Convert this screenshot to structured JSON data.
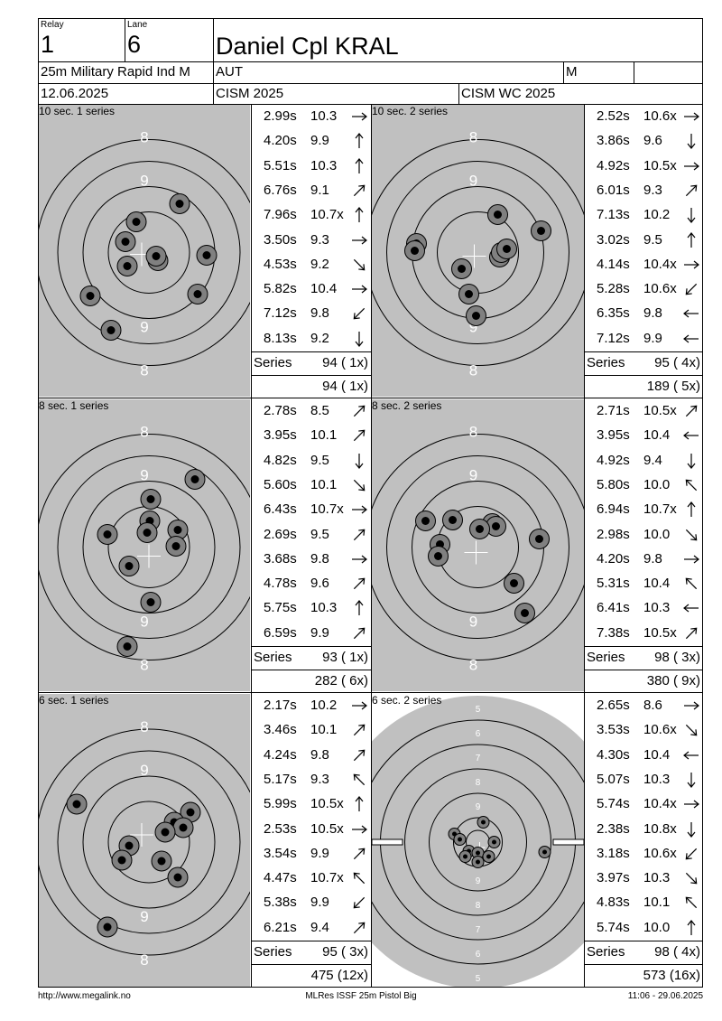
{
  "header": {
    "relay_label": "Relay",
    "relay_value": "1",
    "lane_label": "Lane",
    "lane_value": "6",
    "shooter_name": "Daniel Cpl KRAL",
    "event": "25m Military Rapid Ind M",
    "nation": "AUT",
    "gender": "M",
    "date": "12.06.2025",
    "competition": "CISM 2025",
    "championship": "CISM WC 2025"
  },
  "panels": [
    {
      "title": "10 sec. 1 series",
      "ring_labels": [
        "8",
        "9",
        "9",
        "8"
      ],
      "shots": [
        {
          "time": "2.99s",
          "value": "10.3",
          "dir": "right"
        },
        {
          "time": "4.20s",
          "value": "9.9",
          "dir": "up"
        },
        {
          "time": "5.51s",
          "value": "10.3",
          "dir": "up"
        },
        {
          "time": "6.76s",
          "value": "9.1",
          "dir": "up-right"
        },
        {
          "time": "7.96s",
          "value": "10.7x",
          "dir": "up"
        },
        {
          "time": "3.50s",
          "value": "9.3",
          "dir": "right"
        },
        {
          "time": "4.53s",
          "value": "9.2",
          "dir": "down-right"
        },
        {
          "time": "5.82s",
          "value": "10.4",
          "dir": "right"
        },
        {
          "time": "7.12s",
          "value": "9.8",
          "dir": "down-left"
        },
        {
          "time": "8.13s",
          "value": "9.2",
          "dir": "down"
        }
      ],
      "series_label": "Series",
      "series_total": "94 ( 1x)",
      "cumulative": "94 ( 1x)"
    },
    {
      "title": "10 sec. 2 series",
      "ring_labels": [
        "8",
        "9",
        "9",
        "8"
      ],
      "shots": [
        {
          "time": "2.52s",
          "value": "10.6x",
          "dir": "right"
        },
        {
          "time": "3.86s",
          "value": "9.6",
          "dir": "down"
        },
        {
          "time": "4.92s",
          "value": "10.5x",
          "dir": "right"
        },
        {
          "time": "6.01s",
          "value": "9.3",
          "dir": "up-right"
        },
        {
          "time": "7.13s",
          "value": "10.2",
          "dir": "down"
        },
        {
          "time": "3.02s",
          "value": "9.5",
          "dir": "up"
        },
        {
          "time": "4.14s",
          "value": "10.4x",
          "dir": "right"
        },
        {
          "time": "5.28s",
          "value": "10.6x",
          "dir": "down-left"
        },
        {
          "time": "6.35s",
          "value": "9.8",
          "dir": "left"
        },
        {
          "time": "7.12s",
          "value": "9.9",
          "dir": "left"
        }
      ],
      "series_label": "Series",
      "series_total": "95 ( 4x)",
      "cumulative": "189 ( 5x)"
    },
    {
      "title": "8 sec. 1 series",
      "ring_labels": [
        "8",
        "9",
        "9",
        "8"
      ],
      "shots": [
        {
          "time": "2.78s",
          "value": "8.5",
          "dir": "up-right"
        },
        {
          "time": "3.95s",
          "value": "10.1",
          "dir": "up-right"
        },
        {
          "time": "4.82s",
          "value": "9.5",
          "dir": "down"
        },
        {
          "time": "5.60s",
          "value": "10.1",
          "dir": "down-right"
        },
        {
          "time": "6.43s",
          "value": "10.7x",
          "dir": "right"
        },
        {
          "time": "2.69s",
          "value": "9.5",
          "dir": "up-right"
        },
        {
          "time": "3.68s",
          "value": "9.8",
          "dir": "right"
        },
        {
          "time": "4.78s",
          "value": "9.6",
          "dir": "up-right"
        },
        {
          "time": "5.75s",
          "value": "10.3",
          "dir": "up"
        },
        {
          "time": "6.59s",
          "value": "9.9",
          "dir": "up-right"
        }
      ],
      "series_label": "Series",
      "series_total": "93 ( 1x)",
      "cumulative": "282 ( 6x)"
    },
    {
      "title": "8 sec. 2 series",
      "ring_labels": [
        "8",
        "9",
        "9",
        "8"
      ],
      "shots": [
        {
          "time": "2.71s",
          "value": "10.5x",
          "dir": "up-right"
        },
        {
          "time": "3.95s",
          "value": "10.4",
          "dir": "left"
        },
        {
          "time": "4.92s",
          "value": "9.4",
          "dir": "down"
        },
        {
          "time": "5.80s",
          "value": "10.0",
          "dir": "up-left"
        },
        {
          "time": "6.94s",
          "value": "10.7x",
          "dir": "up"
        },
        {
          "time": "2.98s",
          "value": "10.0",
          "dir": "down-right"
        },
        {
          "time": "4.20s",
          "value": "9.8",
          "dir": "right"
        },
        {
          "time": "5.31s",
          "value": "10.4",
          "dir": "up-left"
        },
        {
          "time": "6.41s",
          "value": "10.3",
          "dir": "left"
        },
        {
          "time": "7.38s",
          "value": "10.5x",
          "dir": "up-right"
        }
      ],
      "series_label": "Series",
      "series_total": "98 ( 3x)",
      "cumulative": "380 ( 9x)"
    },
    {
      "title": "6 sec. 1 series",
      "ring_labels": [
        "8",
        "9",
        "9",
        "8"
      ],
      "shots": [
        {
          "time": "2.17s",
          "value": "10.2",
          "dir": "right"
        },
        {
          "time": "3.46s",
          "value": "10.1",
          "dir": "up-right"
        },
        {
          "time": "4.24s",
          "value": "9.8",
          "dir": "up-right"
        },
        {
          "time": "5.17s",
          "value": "9.3",
          "dir": "up-left"
        },
        {
          "time": "5.99s",
          "value": "10.5x",
          "dir": "up"
        },
        {
          "time": "2.53s",
          "value": "10.5x",
          "dir": "right"
        },
        {
          "time": "3.54s",
          "value": "9.9",
          "dir": "up-right"
        },
        {
          "time": "4.47s",
          "value": "10.7x",
          "dir": "up-left"
        },
        {
          "time": "5.38s",
          "value": "9.9",
          "dir": "down-left"
        },
        {
          "time": "6.21s",
          "value": "9.4",
          "dir": "up-right"
        }
      ],
      "series_label": "Series",
      "series_total": "95 ( 3x)",
      "cumulative": "475 (12x)"
    },
    {
      "title": "6 sec. 2 series",
      "ring_labels": [
        "5",
        "6",
        "7",
        "8",
        "9",
        "9",
        "8",
        "7",
        "6",
        "5"
      ],
      "shots": [
        {
          "time": "2.65s",
          "value": "8.6",
          "dir": "right"
        },
        {
          "time": "3.53s",
          "value": "10.6x",
          "dir": "down-right"
        },
        {
          "time": "4.30s",
          "value": "10.4",
          "dir": "left"
        },
        {
          "time": "5.07s",
          "value": "10.3",
          "dir": "down"
        },
        {
          "time": "5.74s",
          "value": "10.4x",
          "dir": "right"
        },
        {
          "time": "2.38s",
          "value": "10.8x",
          "dir": "down"
        },
        {
          "time": "3.18s",
          "value": "10.6x",
          "dir": "down-left"
        },
        {
          "time": "3.97s",
          "value": "10.3",
          "dir": "down-right"
        },
        {
          "time": "4.83s",
          "value": "10.1",
          "dir": "up-left"
        },
        {
          "time": "5.74s",
          "value": "10.0",
          "dir": "up"
        }
      ],
      "series_label": "Series",
      "series_total": "98 ( 4x)",
      "cumulative": "573 (16x)"
    }
  ],
  "footer": {
    "left": "http://www.megalink.no",
    "center": "MLRes ISSF 25m Pistol Big",
    "right": "11:06 - 29.06.2025"
  },
  "colors": {
    "target_bg": "#c0c0c0",
    "ring": "#000000",
    "shot_outer": "#808080",
    "shot_inner": "#000000"
  }
}
